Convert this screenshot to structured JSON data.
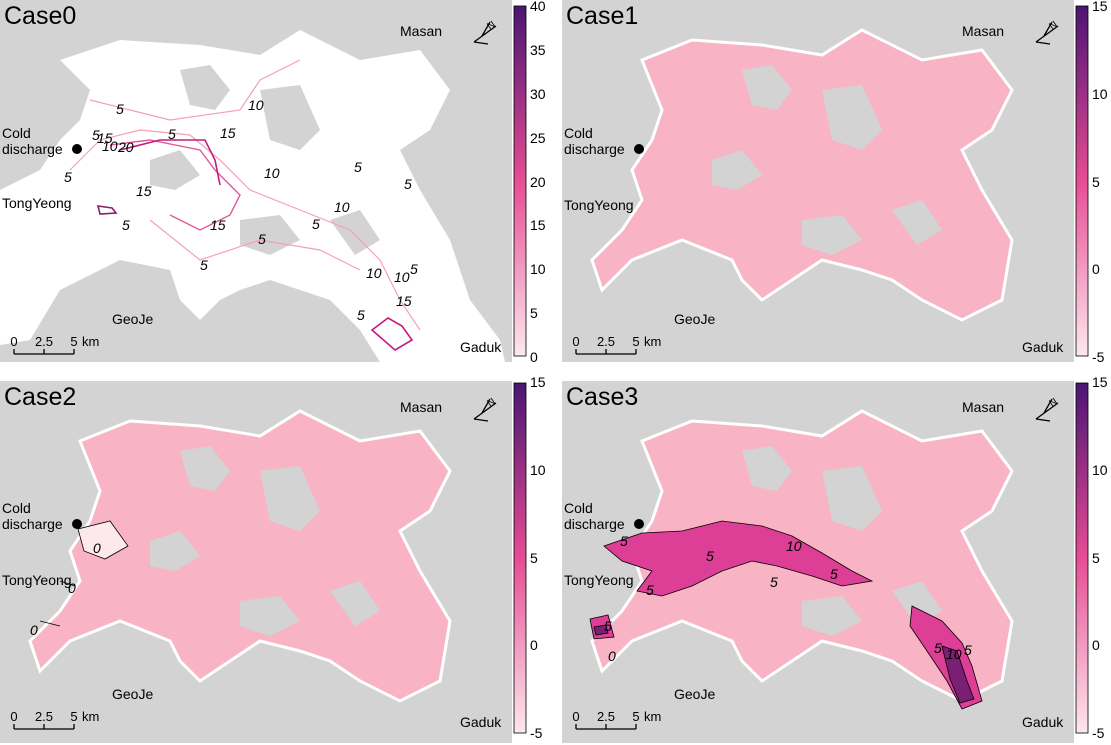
{
  "figure": {
    "places": {
      "masan": "Masan",
      "cold_discharge": [
        "Cold",
        "discharge"
      ],
      "tongyeong": "TongYeong",
      "geoje": "GeoJe",
      "gaduk": "Gaduk"
    },
    "scale_bar": {
      "ticks": [
        "0",
        "2.5",
        "5"
      ],
      "unit": "km"
    },
    "colors": {
      "land": "#d3d3d3",
      "water": "#ffffff",
      "anomaly_fill": "#f8b4c4",
      "cmap_low": "#fde8ec",
      "cmap_mid": "#e64d94",
      "cmap_high": "#4b1573"
    }
  },
  "chart_data": [
    {
      "type": "heatmap",
      "title": "Case0",
      "colorbar": {
        "range": [
          0,
          40
        ],
        "ticks": [
          "40",
          "35",
          "30",
          "25",
          "20",
          "15",
          "10",
          "5",
          "0"
        ]
      },
      "contour_labels": [
        "5",
        "5",
        "5",
        "5",
        "5",
        "5",
        "5",
        "5",
        "5",
        "5",
        "5",
        "10",
        "10",
        "10",
        "10",
        "10",
        "15",
        "15",
        "15",
        "15",
        "20",
        "15",
        "10",
        "5"
      ]
    },
    {
      "type": "heatmap",
      "title": "Case1",
      "colorbar": {
        "range": [
          -5,
          15
        ],
        "ticks": [
          "15",
          "10",
          "5",
          "0",
          "-5"
        ]
      },
      "contour_labels": []
    },
    {
      "type": "heatmap",
      "title": "Case2",
      "colorbar": {
        "range": [
          -5,
          15
        ],
        "ticks": [
          "15",
          "10",
          "5",
          "0",
          "-5"
        ]
      },
      "contour_labels": [
        "0",
        "0",
        "0"
      ]
    },
    {
      "type": "heatmap",
      "title": "Case3",
      "colorbar": {
        "range": [
          -5,
          15
        ],
        "ticks": [
          "15",
          "10",
          "5",
          "0",
          "-5"
        ]
      },
      "contour_labels": [
        "5",
        "5",
        "5",
        "5",
        "10",
        "5",
        "5",
        "0",
        "5",
        "10",
        "5"
      ]
    }
  ]
}
